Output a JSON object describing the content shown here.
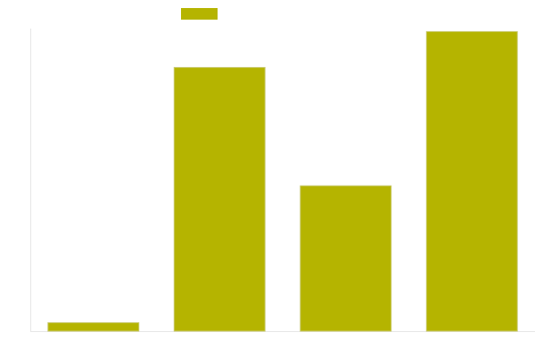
{
  "chart_data": {
    "type": "bar",
    "categories": [
      "",
      "",
      "",
      ""
    ],
    "series": [
      {
        "values": [
          2.8,
          88,
          48.5,
          100
        ]
      }
    ],
    "ylim": [
      0,
      101
    ],
    "grid": false,
    "legend": {
      "position": "top-center"
    },
    "colors": {
      "bar": "#b5b400",
      "axis": "#e6e6e6",
      "background": "#ffffff"
    }
  }
}
